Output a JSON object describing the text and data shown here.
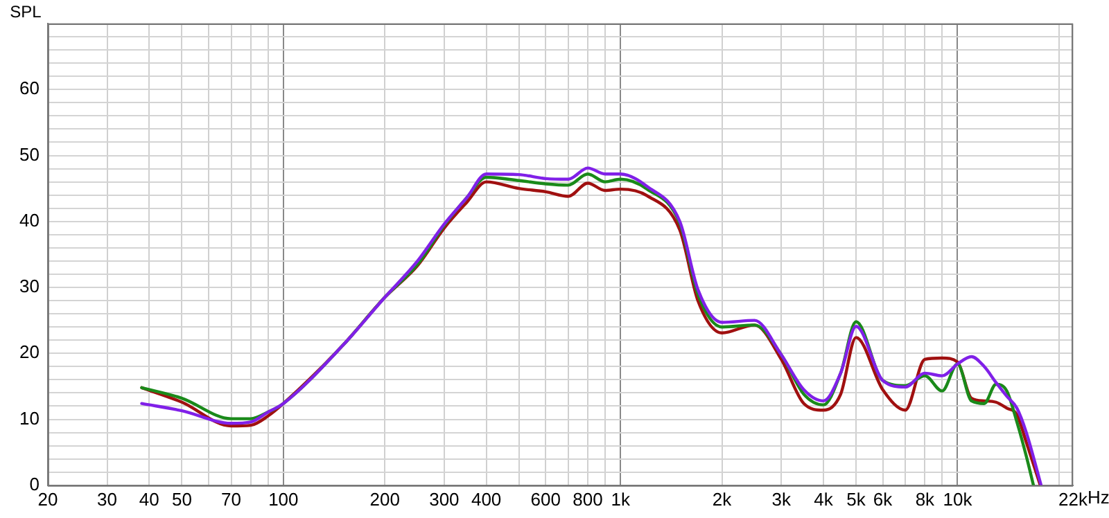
{
  "chart_data": {
    "type": "line",
    "ylabel": "SPL",
    "log": "x",
    "grid": true,
    "legend": false,
    "marker": "none",
    "line_style": "solid",
    "xlim": [
      20,
      22000
    ],
    "xticks": [
      20,
      30,
      40,
      50,
      {
        "value": 60,
        "label": null
      },
      70,
      {
        "value": 80,
        "label": null
      },
      {
        "value": 90,
        "label": null
      },
      100,
      200,
      300,
      400,
      {
        "value": 500,
        "label": null
      },
      600,
      {
        "value": 700,
        "label": null
      },
      800,
      {
        "value": 900,
        "label": null
      },
      {
        "value": 1000,
        "label": "1k"
      },
      {
        "value": 2000,
        "label": "2k"
      },
      {
        "value": 3000,
        "label": "3k"
      },
      {
        "value": 4000,
        "label": "4k"
      },
      {
        "value": 5000,
        "label": "5k"
      },
      {
        "value": 6000,
        "label": "6k"
      },
      {
        "value": 7000,
        "label": null
      },
      {
        "value": 8000,
        "label": "8k"
      },
      {
        "value": 9000,
        "label": null
      },
      {
        "value": 10000,
        "label": "10k"
      },
      {
        "value": 20000,
        "label": null
      },
      {
        "value": 22000,
        "label": "22k"
      }
    ],
    "xlabel": "Hz",
    "ylim": [
      0,
      70
    ],
    "yticks": [
      0,
      {
        "value": 2,
        "label": null
      },
      {
        "value": 4,
        "label": null
      },
      {
        "value": 6,
        "label": null
      },
      {
        "value": 8,
        "label": null
      },
      10,
      {
        "value": 12,
        "label": null
      },
      {
        "value": 14,
        "label": null
      },
      {
        "value": 16,
        "label": null
      },
      {
        "value": 18,
        "label": null
      },
      20,
      {
        "value": 22,
        "label": null
      },
      {
        "value": 24,
        "label": null
      },
      {
        "value": 26,
        "label": null
      },
      {
        "value": 28,
        "label": null
      },
      30,
      {
        "value": 32,
        "label": null
      },
      {
        "value": 34,
        "label": null
      },
      {
        "value": 36,
        "label": null
      },
      {
        "value": 38,
        "label": null
      },
      40,
      {
        "value": 42,
        "label": null
      },
      {
        "value": 44,
        "label": null
      },
      {
        "value": 46,
        "label": null
      },
      {
        "value": 48,
        "label": null
      },
      50,
      {
        "value": 52,
        "label": null
      },
      {
        "value": 54,
        "label": null
      },
      {
        "value": 56,
        "label": null
      },
      {
        "value": 58,
        "label": null
      },
      60,
      {
        "value": 62,
        "label": null
      },
      {
        "value": 64,
        "label": null
      },
      {
        "value": 66,
        "label": null
      },
      {
        "value": 68,
        "label": null
      },
      {
        "value": 70,
        "label": null
      }
    ],
    "series": [
      {
        "color": "#8020e8",
        "x": [
          38,
          50,
          70,
          80,
          90,
          100,
          150,
          200,
          250,
          300,
          350,
          400,
          500,
          600,
          700,
          800,
          900,
          1000,
          1200,
          1500,
          1700,
          2000,
          2500,
          3000,
          3500,
          4000,
          4500,
          5000,
          6000,
          7000,
          8000,
          9000,
          10000,
          11000,
          12000,
          13000,
          14000,
          15000,
          16000,
          17700
        ],
        "values": [
          12.4,
          11.3,
          9.4,
          9.6,
          11.1,
          12.4,
          21.2,
          28.5,
          34,
          39.6,
          43.6,
          47.2,
          47.1,
          46.5,
          46.4,
          48.1,
          47.2,
          47.2,
          45.3,
          40,
          29.6,
          24.7,
          25,
          19.8,
          14.5,
          12.8,
          17,
          24.1,
          15.9,
          14.9,
          17,
          16.6,
          18.4,
          19.5,
          18,
          15.6,
          13.5,
          11.7,
          8,
          0
        ]
      },
      {
        "color": "#1a8a1a",
        "x": [
          38,
          50,
          70,
          80,
          90,
          100,
          150,
          200,
          250,
          300,
          350,
          400,
          500,
          600,
          700,
          800,
          900,
          1000,
          1200,
          1500,
          1700,
          2000,
          2500,
          3000,
          3500,
          4000,
          4500,
          5000,
          6000,
          7000,
          8000,
          9000,
          10000,
          11000,
          12000,
          13000,
          14000,
          15000,
          16000,
          16800
        ],
        "values": [
          14.8,
          13.2,
          10.1,
          10.1,
          11.1,
          12.4,
          21.2,
          28.5,
          33.5,
          39.4,
          43.6,
          46.7,
          46.2,
          45.7,
          45.5,
          47.2,
          46,
          46.4,
          44.9,
          39.7,
          28.9,
          24,
          24.3,
          19.8,
          13.8,
          12.2,
          17,
          24.8,
          15.9,
          15.1,
          16.6,
          14.3,
          18.4,
          12.8,
          12.4,
          15.3,
          14.3,
          9.6,
          4.4,
          0
        ]
      },
      {
        "color": "#a01010",
        "x": [
          38,
          50,
          70,
          80,
          90,
          100,
          150,
          200,
          250,
          300,
          350,
          400,
          500,
          600,
          700,
          800,
          900,
          1000,
          1200,
          1500,
          1700,
          2000,
          2500,
          3000,
          3500,
          4000,
          4500,
          5000,
          6000,
          7000,
          8000,
          9000,
          10000,
          11000,
          12000,
          13000,
          14000,
          15000,
          16000,
          17600
        ],
        "values": [
          14.8,
          12.6,
          9,
          9.1,
          10.5,
          12.4,
          21.2,
          28.5,
          33.3,
          39,
          42.9,
          46,
          45,
          44.5,
          43.8,
          45.8,
          44.7,
          44.9,
          43.9,
          38.7,
          27.9,
          23.1,
          24.3,
          19.1,
          12.4,
          11.4,
          13.8,
          22.4,
          14.5,
          11.4,
          19.1,
          19.3,
          18.7,
          13.2,
          12.8,
          12.6,
          11.7,
          10.7,
          6.5,
          0
        ]
      }
    ]
  }
}
